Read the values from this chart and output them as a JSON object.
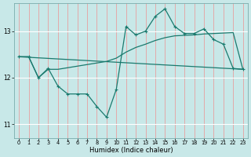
{
  "xlabel": "Humidex (Indice chaleur)",
  "bg_color": "#c8e8e8",
  "line_color": "#1a7a6e",
  "xlim": [
    -0.5,
    23.5
  ],
  "ylim": [
    10.7,
    13.6
  ],
  "yticks": [
    11,
    12,
    13
  ],
  "xticks": [
    0,
    1,
    2,
    3,
    4,
    5,
    6,
    7,
    8,
    9,
    10,
    11,
    12,
    13,
    14,
    15,
    16,
    17,
    18,
    19,
    20,
    21,
    22,
    23
  ],
  "series1_x": [
    0,
    1,
    2,
    3,
    4,
    5,
    6,
    7,
    8,
    9,
    10,
    11,
    12,
    13,
    14,
    15,
    16,
    17,
    18,
    19,
    20,
    21,
    22,
    23
  ],
  "series1_y": [
    12.45,
    12.45,
    12.0,
    12.2,
    11.82,
    11.65,
    11.65,
    11.65,
    11.38,
    11.15,
    11.75,
    13.1,
    12.92,
    13.0,
    13.32,
    13.48,
    13.1,
    12.95,
    12.95,
    13.05,
    12.82,
    12.72,
    12.2,
    12.18
  ],
  "series2_x": [
    0,
    1,
    2,
    3,
    4,
    9,
    10,
    11,
    12,
    13,
    14,
    15,
    16,
    17,
    18,
    19,
    20,
    21,
    22,
    23
  ],
  "series2_y": [
    12.45,
    12.45,
    12.0,
    12.18,
    12.18,
    12.35,
    12.42,
    12.55,
    12.65,
    12.72,
    12.8,
    12.86,
    12.9,
    12.91,
    12.92,
    12.94,
    12.95,
    12.96,
    12.97,
    12.18
  ],
  "series3_x": [
    0,
    23
  ],
  "series3_y": [
    12.45,
    12.18
  ]
}
